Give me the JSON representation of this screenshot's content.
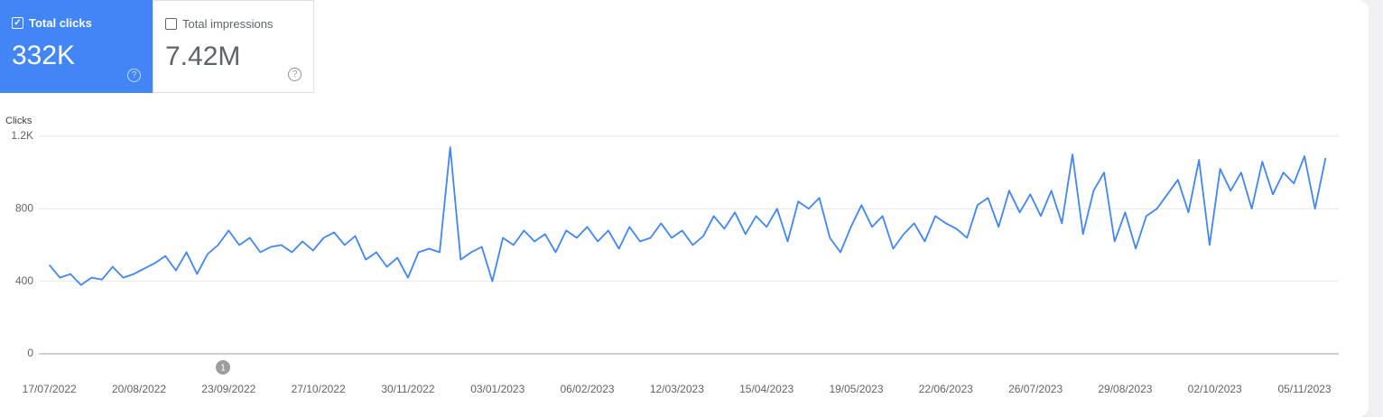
{
  "cards": [
    {
      "label": "Total clicks",
      "value": "332K",
      "checked": true
    },
    {
      "label": "Total impressions",
      "value": "7.42M",
      "checked": false
    }
  ],
  "chart_data": {
    "type": "line",
    "y_label": "Clicks",
    "color": "#4285f4",
    "grid": true,
    "ylim": [
      0,
      1200
    ],
    "yticks": [
      0,
      400,
      800,
      {
        "value": 1200,
        "label": "1.2K"
      }
    ],
    "xlim": [
      "13/07/2022",
      "18/11/2023"
    ],
    "xticks": [
      "17/07/2022",
      "20/08/2022",
      "23/09/2022",
      "27/10/2022",
      "30/11/2022",
      "03/01/2023",
      "06/02/2023",
      "12/03/2023",
      "15/04/2023",
      "19/05/2023",
      "22/06/2023",
      "26/07/2023",
      "29/08/2023",
      "02/10/2023",
      "05/11/2023"
    ],
    "annotations": [
      "1"
    ],
    "x": [
      "17/07/2022",
      "21/07/2022",
      "25/07/2022",
      "29/07/2022",
      "02/08/2022",
      "06/08/2022",
      "10/08/2022",
      "14/08/2022",
      "18/08/2022",
      "22/08/2022",
      "26/08/2022",
      "30/08/2022",
      "03/09/2022",
      "07/09/2022",
      "11/09/2022",
      "15/09/2022",
      "19/09/2022",
      "23/09/2022",
      "27/09/2022",
      "01/10/2022",
      "05/10/2022",
      "09/10/2022",
      "13/10/2022",
      "17/10/2022",
      "21/10/2022",
      "25/10/2022",
      "29/10/2022",
      "02/11/2022",
      "06/11/2022",
      "10/11/2022",
      "14/11/2022",
      "18/11/2022",
      "22/11/2022",
      "26/11/2022",
      "30/11/2022",
      "04/12/2022",
      "08/12/2022",
      "12/12/2022",
      "16/12/2022",
      "20/12/2022",
      "24/12/2022",
      "28/12/2022",
      "01/01/2023",
      "05/01/2023",
      "09/01/2023",
      "13/01/2023",
      "17/01/2023",
      "21/01/2023",
      "25/01/2023",
      "29/01/2023",
      "02/02/2023",
      "06/02/2023",
      "10/02/2023",
      "14/02/2023",
      "18/02/2023",
      "22/02/2023",
      "26/02/2023",
      "02/03/2023",
      "06/03/2023",
      "10/03/2023",
      "14/03/2023",
      "18/03/2023",
      "22/03/2023",
      "26/03/2023",
      "30/03/2023",
      "03/04/2023",
      "07/04/2023",
      "11/04/2023",
      "15/04/2023",
      "19/04/2023",
      "23/04/2023",
      "27/04/2023",
      "01/05/2023",
      "05/05/2023",
      "09/05/2023",
      "13/05/2023",
      "17/05/2023",
      "21/05/2023",
      "25/05/2023",
      "29/05/2023",
      "02/06/2023",
      "06/06/2023",
      "10/06/2023",
      "14/06/2023",
      "18/06/2023",
      "22/06/2023",
      "26/06/2023",
      "30/06/2023",
      "04/07/2023",
      "08/07/2023",
      "12/07/2023",
      "16/07/2023",
      "20/07/2023",
      "24/07/2023",
      "28/07/2023",
      "01/08/2023",
      "05/08/2023",
      "09/08/2023",
      "13/08/2023",
      "17/08/2023",
      "21/08/2023",
      "25/08/2023",
      "29/08/2023",
      "02/09/2023",
      "06/09/2023",
      "10/09/2023",
      "14/09/2023",
      "18/09/2023",
      "22/09/2023",
      "26/09/2023",
      "30/09/2023",
      "04/10/2023",
      "08/10/2023",
      "12/10/2023",
      "16/10/2023",
      "20/10/2023",
      "24/10/2023",
      "28/10/2023",
      "01/11/2023",
      "05/11/2023",
      "09/11/2023",
      "13/11/2023"
    ],
    "values": [
      490,
      420,
      440,
      380,
      420,
      410,
      480,
      420,
      440,
      470,
      500,
      540,
      460,
      560,
      440,
      550,
      600,
      680,
      600,
      640,
      560,
      590,
      600,
      560,
      620,
      570,
      640,
      670,
      600,
      650,
      520,
      560,
      480,
      530,
      420,
      560,
      580,
      560,
      1140,
      520,
      560,
      590,
      400,
      640,
      600,
      680,
      620,
      660,
      560,
      680,
      640,
      700,
      620,
      680,
      580,
      700,
      620,
      640,
      720,
      640,
      680,
      600,
      650,
      760,
      690,
      780,
      660,
      760,
      700,
      800,
      620,
      840,
      800,
      860,
      640,
      560,
      700,
      820,
      700,
      760,
      580,
      660,
      720,
      620,
      760,
      720,
      690,
      640,
      820,
      860,
      700,
      900,
      780,
      880,
      760,
      900,
      720,
      1100,
      660,
      900,
      1000,
      620,
      780,
      580,
      760,
      800,
      880,
      960,
      780,
      1070,
      600,
      1020,
      900,
      1000,
      800,
      1060,
      880,
      1000,
      940,
      1090,
      800,
      1080
    ]
  }
}
